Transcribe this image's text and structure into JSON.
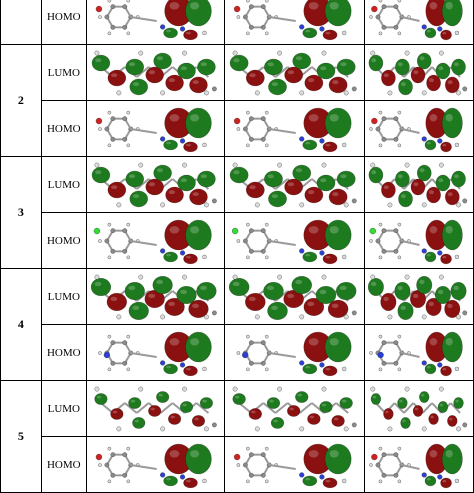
{
  "table": {
    "top_row": {
      "label": "HOMO"
    },
    "groups": [
      {
        "compound": "2",
        "rows": [
          "LUMO",
          "HOMO"
        ]
      },
      {
        "compound": "3",
        "rows": [
          "LUMO",
          "HOMO"
        ]
      },
      {
        "compound": "4",
        "rows": [
          "LUMO",
          "HOMO"
        ]
      },
      {
        "compound": "5",
        "rows": [
          "LUMO",
          "HOMO"
        ]
      }
    ]
  },
  "colors": {
    "lobe_red": "#8b1010",
    "lobe_green": "#1e7a1e",
    "atom_white": "#dcdcdc",
    "atom_gray": "#8a8a8a",
    "atom_blue": "#2b3fd6",
    "atom_red": "#d02020",
    "atom_chlorine": "#33dd33"
  }
}
